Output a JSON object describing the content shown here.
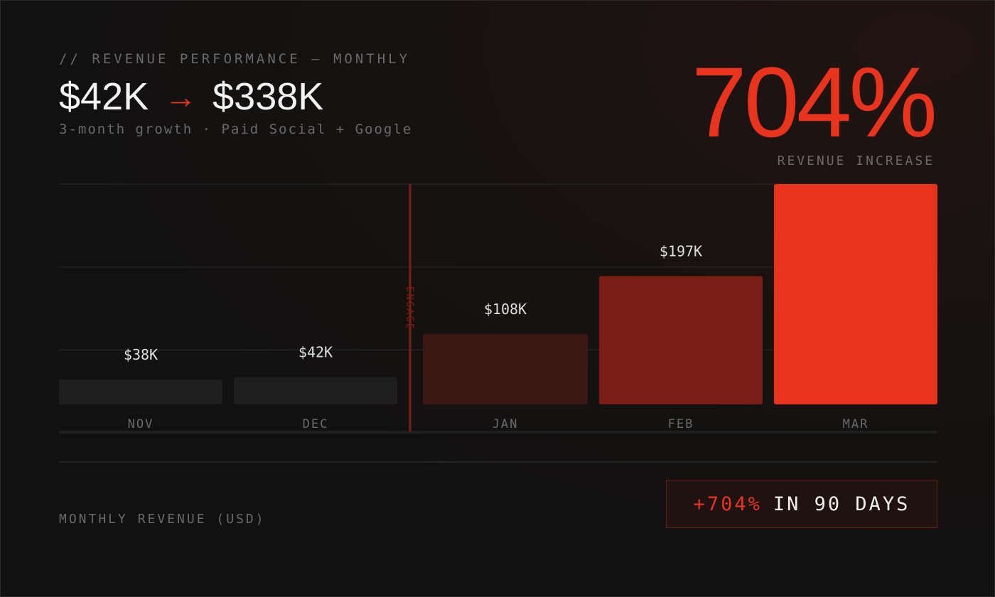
{
  "header": {
    "overline": "// REVENUE PERFORMANCE — MONTHLY",
    "from_value": "$42K",
    "arrow": "→",
    "to_value": "$338K",
    "subtitle": "3-month growth · Paid Social + Google"
  },
  "stat": {
    "value": "704%",
    "label": "REVENUE INCREASE"
  },
  "chart_data": {
    "type": "bar",
    "categories": [
      "NOV",
      "DEC",
      "JAN",
      "FEB",
      "MAR"
    ],
    "values": [
      38,
      42,
      108,
      197,
      338
    ],
    "value_labels": [
      "$38K",
      "$42K",
      "$108K",
      "$197K",
      ""
    ],
    "unit": "$K",
    "ylabel": "MONTHLY REVENUE (USD)",
    "ylim": [
      0,
      338
    ],
    "grid": true,
    "annotations": [
      {
        "label": "ENGAGE",
        "between": [
          "DEC",
          "JAN"
        ]
      }
    ],
    "colors": [
      "#1e1e1e",
      "#1e1e1e",
      "#3b1813",
      "#7a1e15",
      "#e8341c"
    ],
    "label_colors": [
      "#dedede",
      "#dedede",
      "#dedede",
      "#dedede",
      "#dedede"
    ],
    "axis_label_color": "#6a6a6a",
    "annotation_color": "#7d1e14",
    "grid_color": "#242424"
  },
  "footer": {
    "badge_accent": "+704%",
    "badge_text": "IN 90 DAYS"
  }
}
